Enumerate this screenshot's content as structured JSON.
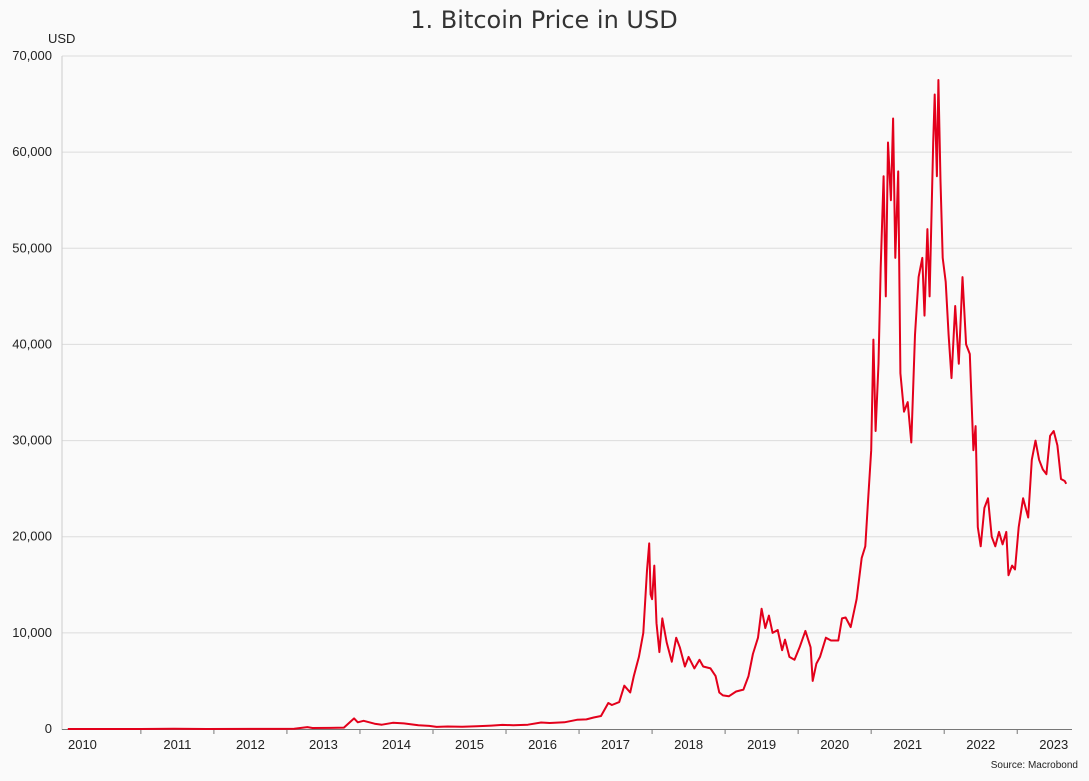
{
  "chart_data": {
    "type": "line",
    "title": "1. Bitcoin Price in USD",
    "ylabel": "USD",
    "xlabel": "",
    "ylim": [
      0,
      70000
    ],
    "xlim": [
      2009.92,
      2023.75
    ],
    "y_ticks": [
      {
        "value": 0,
        "label": "0"
      },
      {
        "value": 10000,
        "label": "10,000"
      },
      {
        "value": 20000,
        "label": "20,000"
      },
      {
        "value": 30000,
        "label": "30,000"
      },
      {
        "value": 40000,
        "label": "40,000"
      },
      {
        "value": 50000,
        "label": "50,000"
      },
      {
        "value": 60000,
        "label": "60,000"
      },
      {
        "value": 70000,
        "label": "70,000"
      }
    ],
    "x_ticks": [
      {
        "label": "2010",
        "value": 2010.2
      },
      {
        "label": "2011",
        "value": 2011.5
      },
      {
        "label": "2012",
        "value": 2012.5
      },
      {
        "label": "2013",
        "value": 2013.5
      },
      {
        "label": "2014",
        "value": 2014.5
      },
      {
        "label": "2015",
        "value": 2015.5
      },
      {
        "label": "2016",
        "value": 2016.5
      },
      {
        "label": "2017",
        "value": 2017.5
      },
      {
        "label": "2018",
        "value": 2018.5
      },
      {
        "label": "2019",
        "value": 2019.5
      },
      {
        "label": "2020",
        "value": 2020.5
      },
      {
        "label": "2021",
        "value": 2021.5
      },
      {
        "label": "2022",
        "value": 2022.5
      },
      {
        "label": "2023",
        "value": 2023.5
      }
    ],
    "year_boundaries": [
      2011,
      2012,
      2013,
      2014,
      2015,
      2016,
      2017,
      2018,
      2019,
      2020,
      2021,
      2022,
      2023
    ],
    "grid": true,
    "legend": "none",
    "series": [
      {
        "name": "Bitcoin Price in USD",
        "color": "#e3001b",
        "points": [
          [
            2010.0,
            0
          ],
          [
            2011.0,
            1
          ],
          [
            2011.45,
            25
          ],
          [
            2011.9,
            3
          ],
          [
            2012.5,
            7
          ],
          [
            2012.9,
            13
          ],
          [
            2013.1,
            20
          ],
          [
            2013.28,
            200
          ],
          [
            2013.35,
            100
          ],
          [
            2013.6,
            110
          ],
          [
            2013.78,
            150
          ],
          [
            2013.92,
            1100
          ],
          [
            2013.97,
            700
          ],
          [
            2014.05,
            850
          ],
          [
            2014.2,
            550
          ],
          [
            2014.3,
            450
          ],
          [
            2014.45,
            650
          ],
          [
            2014.6,
            580
          ],
          [
            2014.8,
            380
          ],
          [
            2014.95,
            320
          ],
          [
            2015.05,
            220
          ],
          [
            2015.2,
            260
          ],
          [
            2015.4,
            240
          ],
          [
            2015.6,
            280
          ],
          [
            2015.8,
            350
          ],
          [
            2015.95,
            430
          ],
          [
            2016.1,
            400
          ],
          [
            2016.3,
            450
          ],
          [
            2016.48,
            680
          ],
          [
            2016.6,
            620
          ],
          [
            2016.8,
            700
          ],
          [
            2016.97,
            960
          ],
          [
            2017.1,
            1000
          ],
          [
            2017.2,
            1200
          ],
          [
            2017.3,
            1350
          ],
          [
            2017.4,
            2700
          ],
          [
            2017.45,
            2500
          ],
          [
            2017.55,
            2800
          ],
          [
            2017.62,
            4500
          ],
          [
            2017.7,
            3800
          ],
          [
            2017.75,
            5500
          ],
          [
            2017.82,
            7500
          ],
          [
            2017.88,
            10000
          ],
          [
            2017.93,
            16500
          ],
          [
            2017.96,
            19300
          ],
          [
            2017.98,
            14000
          ],
          [
            2018.0,
            13500
          ],
          [
            2018.03,
            17000
          ],
          [
            2018.06,
            11000
          ],
          [
            2018.1,
            8000
          ],
          [
            2018.14,
            11500
          ],
          [
            2018.2,
            9000
          ],
          [
            2018.27,
            7000
          ],
          [
            2018.33,
            9500
          ],
          [
            2018.38,
            8500
          ],
          [
            2018.45,
            6500
          ],
          [
            2018.5,
            7500
          ],
          [
            2018.58,
            6300
          ],
          [
            2018.65,
            7200
          ],
          [
            2018.7,
            6500
          ],
          [
            2018.8,
            6300
          ],
          [
            2018.87,
            5500
          ],
          [
            2018.92,
            3800
          ],
          [
            2018.97,
            3500
          ],
          [
            2019.05,
            3400
          ],
          [
            2019.15,
            3900
          ],
          [
            2019.25,
            4100
          ],
          [
            2019.32,
            5500
          ],
          [
            2019.38,
            7800
          ],
          [
            2019.45,
            9500
          ],
          [
            2019.5,
            12500
          ],
          [
            2019.55,
            10500
          ],
          [
            2019.6,
            11800
          ],
          [
            2019.65,
            10000
          ],
          [
            2019.72,
            10300
          ],
          [
            2019.78,
            8200
          ],
          [
            2019.82,
            9300
          ],
          [
            2019.88,
            7500
          ],
          [
            2019.95,
            7200
          ],
          [
            2020.02,
            8500
          ],
          [
            2020.1,
            10200
          ],
          [
            2020.17,
            8500
          ],
          [
            2020.2,
            5000
          ],
          [
            2020.25,
            6800
          ],
          [
            2020.3,
            7500
          ],
          [
            2020.38,
            9500
          ],
          [
            2020.45,
            9200
          ],
          [
            2020.55,
            9200
          ],
          [
            2020.6,
            11500
          ],
          [
            2020.65,
            11600
          ],
          [
            2020.72,
            10600
          ],
          [
            2020.8,
            13500
          ],
          [
            2020.87,
            17800
          ],
          [
            2020.92,
            19000
          ],
          [
            2020.96,
            24000
          ],
          [
            2021.0,
            29000
          ],
          [
            2021.03,
            40500
          ],
          [
            2021.06,
            31000
          ],
          [
            2021.1,
            38000
          ],
          [
            2021.13,
            48000
          ],
          [
            2021.17,
            57500
          ],
          [
            2021.2,
            45000
          ],
          [
            2021.23,
            61000
          ],
          [
            2021.27,
            55000
          ],
          [
            2021.3,
            63500
          ],
          [
            2021.33,
            49000
          ],
          [
            2021.37,
            58000
          ],
          [
            2021.4,
            37000
          ],
          [
            2021.45,
            33000
          ],
          [
            2021.5,
            34000
          ],
          [
            2021.55,
            29800
          ],
          [
            2021.6,
            41000
          ],
          [
            2021.65,
            47000
          ],
          [
            2021.7,
            49000
          ],
          [
            2021.73,
            43000
          ],
          [
            2021.77,
            52000
          ],
          [
            2021.8,
            45000
          ],
          [
            2021.85,
            61000
          ],
          [
            2021.87,
            66000
          ],
          [
            2021.9,
            57500
          ],
          [
            2021.92,
            67500
          ],
          [
            2021.95,
            57000
          ],
          [
            2021.98,
            49000
          ],
          [
            2022.02,
            46500
          ],
          [
            2022.06,
            41000
          ],
          [
            2022.1,
            36500
          ],
          [
            2022.15,
            44000
          ],
          [
            2022.2,
            38000
          ],
          [
            2022.25,
            47000
          ],
          [
            2022.3,
            40000
          ],
          [
            2022.35,
            39000
          ],
          [
            2022.4,
            29000
          ],
          [
            2022.43,
            31500
          ],
          [
            2022.46,
            21000
          ],
          [
            2022.5,
            19000
          ],
          [
            2022.55,
            23000
          ],
          [
            2022.6,
            24000
          ],
          [
            2022.65,
            20000
          ],
          [
            2022.7,
            19000
          ],
          [
            2022.75,
            20500
          ],
          [
            2022.8,
            19200
          ],
          [
            2022.85,
            20500
          ],
          [
            2022.88,
            16000
          ],
          [
            2022.93,
            17000
          ],
          [
            2022.97,
            16600
          ],
          [
            2023.02,
            21000
          ],
          [
            2023.08,
            24000
          ],
          [
            2023.15,
            22000
          ],
          [
            2023.2,
            28000
          ],
          [
            2023.25,
            30000
          ],
          [
            2023.3,
            28000
          ],
          [
            2023.35,
            27000
          ],
          [
            2023.4,
            26500
          ],
          [
            2023.45,
            30500
          ],
          [
            2023.5,
            31000
          ],
          [
            2023.55,
            29500
          ],
          [
            2023.6,
            26000
          ],
          [
            2023.65,
            25800
          ],
          [
            2023.67,
            25500
          ]
        ]
      }
    ],
    "source": "Source: Macrobond"
  }
}
